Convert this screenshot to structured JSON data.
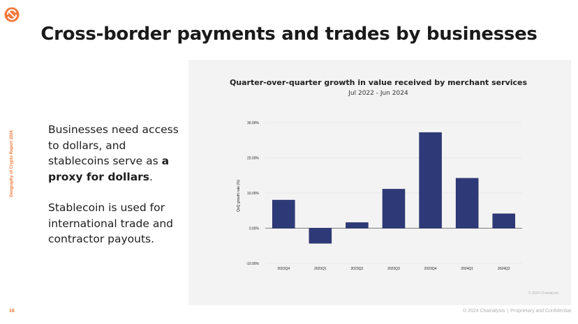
{
  "slide": {
    "title": "Cross-border payments and trades by businesses",
    "side_label": "Geography of Crypto Report 2024",
    "page_number": "16",
    "footer_left": "© 2024 Chainalysis",
    "footer_sep": "|",
    "footer_right": "Proprietary and Confidential",
    "accent_color": "#f4793a",
    "logo_icon": "chainalysis-logo"
  },
  "body_text": {
    "p1_pre": "Businesses need access to dollars, and stablecoins serve as ",
    "p1_bold": "a proxy for dollars",
    "p1_post": ".",
    "p2": "Stablecoin is used for international trade and contractor payouts."
  },
  "chart_data": {
    "type": "bar",
    "title": "Quarter-over-quarter growth in value received by merchant services",
    "subtitle": "Jul 2022 - Jun 2024",
    "xlabel": "",
    "ylabel": "QoQ growth rate (%)",
    "categories": [
      "2022Q4",
      "2023Q1",
      "2023Q2",
      "2023Q3",
      "2023Q4",
      "2024Q1",
      "2024Q2"
    ],
    "values": [
      8.0,
      -4.3,
      1.6,
      11.1,
      27.2,
      14.2,
      4.1
    ],
    "ylim": [
      -10,
      30
    ],
    "yticks": [
      30,
      20,
      10,
      0,
      -10
    ],
    "ytick_labels": [
      "30.00%",
      "20.00%",
      "10.00%",
      "0.00%",
      "-10.00%"
    ],
    "bar_color": "#2e3a78",
    "grid": true,
    "watermark": "© 2024 Chainalysis"
  }
}
